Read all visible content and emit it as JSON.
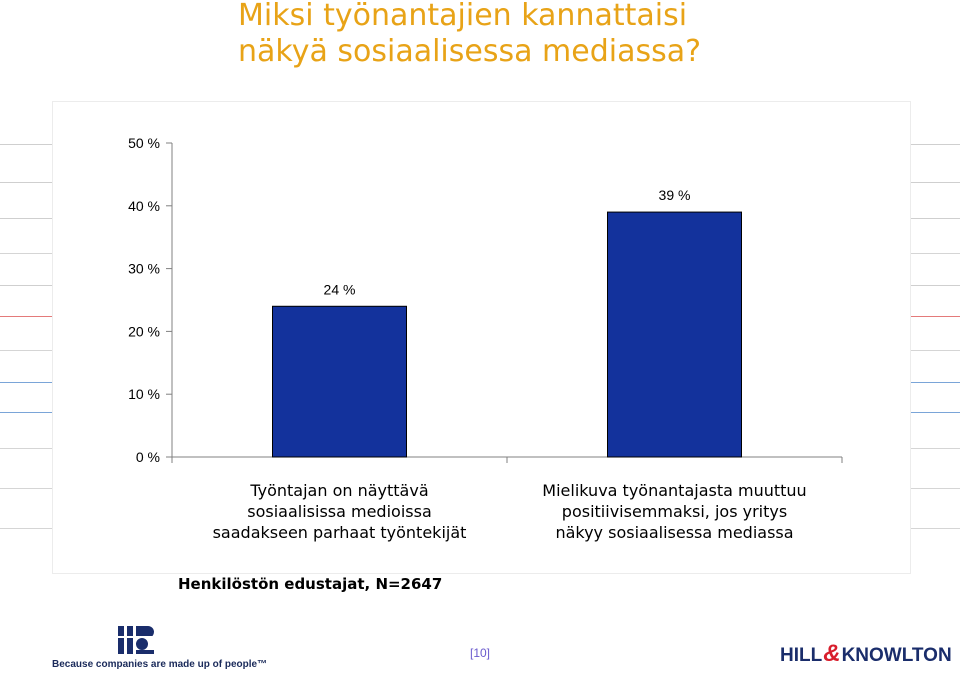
{
  "slide": {
    "title_line1": "Miksi työnantajien kannattaisi",
    "title_line2": "näkyä sosiaalisessa mediassa?",
    "source": "Henkilöstön edustajat, N=2647",
    "page_number": "[10]",
    "tagline": "Because companies are made up of people™",
    "brand_left_part1": "HILL",
    "brand_amp": "&",
    "brand_right_part2": "KNOWLTON"
  },
  "colors": {
    "title": "#E8A317",
    "bar": "#13329C",
    "axis": "#808080",
    "brand": "#1a2d6b",
    "accent_red": "#d81e2c"
  },
  "chart_data": {
    "type": "bar",
    "categories": [
      "Työntajan on näyttävä\nsosiaalisissa medioissa\nsaadakseen parhaat työntekijät",
      "Mielikuva työnantajasta muuttuu\npositiivisemmaksi, jos yritys\nnäkyy sosiaalisessa mediassa"
    ],
    "values": [
      24,
      39
    ],
    "data_labels": [
      "24 %",
      "39 %"
    ],
    "y_ticks": [
      0,
      10,
      20,
      30,
      40,
      50
    ],
    "y_tick_labels": [
      "0 %",
      "10 %",
      "20 %",
      "30 %",
      "40 %",
      "50 %"
    ],
    "ylim": [
      0,
      50
    ],
    "title": "",
    "xlabel": "",
    "ylabel": "",
    "grid": false,
    "legend": "none"
  }
}
